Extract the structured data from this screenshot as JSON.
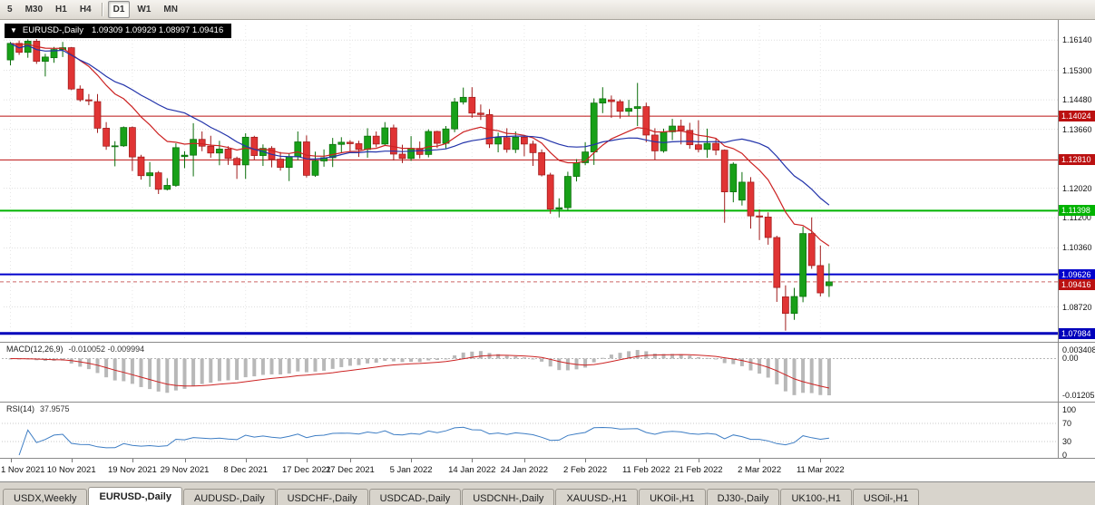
{
  "toolbar": {
    "timeframes": [
      "5",
      "M30",
      "H1",
      "H4",
      "D1",
      "W1",
      "MN"
    ],
    "active": "D1"
  },
  "chart": {
    "title": {
      "dropdown_glyph": "▼",
      "symbol": "EURUSD-,Daily",
      "ohlc": "1.09309 1.09929 1.08997 1.09416"
    },
    "scale": {
      "min": 1.078,
      "max": 1.1655
    },
    "price_axis": {
      "ticks": [
        "1.16140",
        "1.15300",
        "1.14480",
        "1.13660",
        "1.12020",
        "1.11200",
        "1.10360",
        "1.08720"
      ]
    },
    "levels": [
      {
        "label": "1.14024",
        "value": 1.14024,
        "color": "#bb1111",
        "width": 1
      },
      {
        "label": "1.12810",
        "value": 1.1281,
        "color": "#bb1111",
        "width": 1
      },
      {
        "label": "1.11398",
        "value": 1.11398,
        "color": "#00b300",
        "width": 2
      },
      {
        "label": "1.09626",
        "value": 1.09626,
        "color": "#0000cc",
        "width": 2
      },
      {
        "label": "1.07984",
        "value": 1.07984,
        "color": "#0000bb",
        "width": 3
      }
    ],
    "current_price": {
      "label": "1.09416",
      "value": 1.09416,
      "color": "#bb1111"
    },
    "colors": {
      "up": "#18a018",
      "up_border": "#0b6e0b",
      "down": "#e03434",
      "down_border": "#a01c1c",
      "ma_slow": "#2233aa",
      "ma_fast": "#cc2222"
    }
  },
  "chart_data": {
    "type": "candlestick",
    "symbol": "EURUSD-,Daily",
    "note": "values approximate, read from chart pixels; order [open,high,low,close]",
    "x_labels": [
      {
        "label": "1 Nov 2021",
        "i": 0
      },
      {
        "label": "10 Nov 2021",
        "i": 7
      },
      {
        "label": "19 Nov 2021",
        "i": 14
      },
      {
        "label": "29 Nov 2021",
        "i": 20
      },
      {
        "label": "8 Dec 2021",
        "i": 27
      },
      {
        "label": "17 Dec 2021",
        "i": 34
      },
      {
        "label": "27 Dec 2021",
        "i": 39
      },
      {
        "label": "5 Jan 2022",
        "i": 46
      },
      {
        "label": "14 Jan 2022",
        "i": 53
      },
      {
        "label": "24 Jan 2022",
        "i": 59
      },
      {
        "label": "2 Feb 2022",
        "i": 66
      },
      {
        "label": "11 Feb 2022",
        "i": 73
      },
      {
        "label": "21 Feb 2022",
        "i": 79
      },
      {
        "label": "2 Mar 2022",
        "i": 86
      },
      {
        "label": "11 Mar 2022",
        "i": 93
      }
    ],
    "candles": [
      [
        1.1559,
        1.1609,
        1.1544,
        1.1605
      ],
      [
        1.1605,
        1.1613,
        1.1573,
        1.158
      ],
      [
        1.158,
        1.1616,
        1.1565,
        1.1611
      ],
      [
        1.1611,
        1.1617,
        1.1548,
        1.1555
      ],
      [
        1.1555,
        1.1576,
        1.1513,
        1.1567
      ],
      [
        1.1565,
        1.1595,
        1.1551,
        1.1588
      ],
      [
        1.1588,
        1.1609,
        1.1567,
        1.1593
      ],
      [
        1.1593,
        1.1595,
        1.1475,
        1.1478
      ],
      [
        1.1478,
        1.1488,
        1.1443,
        1.1448
      ],
      [
        1.1448,
        1.1464,
        1.1433,
        1.1445
      ],
      [
        1.1443,
        1.1464,
        1.1356,
        1.1369
      ],
      [
        1.1369,
        1.1386,
        1.1309,
        1.1319
      ],
      [
        1.1319,
        1.1333,
        1.1263,
        1.132
      ],
      [
        1.132,
        1.1374,
        1.1317,
        1.1371
      ],
      [
        1.1371,
        1.1374,
        1.125,
        1.1289
      ],
      [
        1.1289,
        1.1295,
        1.1226,
        1.1237
      ],
      [
        1.1237,
        1.1275,
        1.1206,
        1.1245
      ],
      [
        1.1245,
        1.125,
        1.1186,
        1.1199
      ],
      [
        1.1199,
        1.123,
        1.1196,
        1.121
      ],
      [
        1.121,
        1.1327,
        1.1206,
        1.1315
      ],
      [
        1.129,
        1.1305,
        1.1258,
        1.1294
      ],
      [
        1.1294,
        1.1383,
        1.1235,
        1.1338
      ],
      [
        1.1338,
        1.136,
        1.1305,
        1.1319
      ],
      [
        1.1319,
        1.1348,
        1.1287,
        1.13
      ],
      [
        1.13,
        1.1334,
        1.1266,
        1.1311
      ],
      [
        1.1311,
        1.1319,
        1.1267,
        1.1285
      ],
      [
        1.1285,
        1.129,
        1.1228,
        1.1267
      ],
      [
        1.1267,
        1.1355,
        1.1228,
        1.1344
      ],
      [
        1.1344,
        1.1348,
        1.128,
        1.1293
      ],
      [
        1.1293,
        1.1324,
        1.1264,
        1.1313
      ],
      [
        1.1313,
        1.1319,
        1.126,
        1.1283
      ],
      [
        1.1283,
        1.1303,
        1.1251,
        1.126
      ],
      [
        1.126,
        1.1298,
        1.1222,
        1.129
      ],
      [
        1.129,
        1.136,
        1.128,
        1.1331
      ],
      [
        1.1331,
        1.1349,
        1.1232,
        1.1238
      ],
      [
        1.1238,
        1.1304,
        1.1234,
        1.1278
      ],
      [
        1.1278,
        1.131,
        1.1262,
        1.1287
      ],
      [
        1.1287,
        1.1342,
        1.1261,
        1.1324
      ],
      [
        1.1324,
        1.1344,
        1.1301,
        1.133
      ],
      [
        1.133,
        1.1336,
        1.1304,
        1.1326
      ],
      [
        1.1326,
        1.1334,
        1.1289,
        1.131
      ],
      [
        1.131,
        1.1369,
        1.1287,
        1.1347
      ],
      [
        1.1347,
        1.136,
        1.1316,
        1.1325
      ],
      [
        1.1325,
        1.1386,
        1.1321,
        1.137
      ],
      [
        1.137,
        1.1379,
        1.1279,
        1.1297
      ],
      [
        1.1297,
        1.1323,
        1.1272,
        1.1285
      ],
      [
        1.1285,
        1.1347,
        1.1278,
        1.1313
      ],
      [
        1.1313,
        1.1332,
        1.1285,
        1.1296
      ],
      [
        1.1296,
        1.1366,
        1.1288,
        1.136
      ],
      [
        1.136,
        1.1362,
        1.1314,
        1.1327
      ],
      [
        1.1327,
        1.1375,
        1.1313,
        1.1367
      ],
      [
        1.1367,
        1.1453,
        1.1358,
        1.1442
      ],
      [
        1.1442,
        1.1482,
        1.1435,
        1.1455
      ],
      [
        1.1455,
        1.1483,
        1.1398,
        1.1411
      ],
      [
        1.1411,
        1.1435,
        1.1392,
        1.1407
      ],
      [
        1.1407,
        1.1422,
        1.1314,
        1.1325
      ],
      [
        1.1325,
        1.1357,
        1.1302,
        1.1343
      ],
      [
        1.1343,
        1.1369,
        1.1301,
        1.131
      ],
      [
        1.131,
        1.136,
        1.13,
        1.1344
      ],
      [
        1.1344,
        1.1349,
        1.1291,
        1.1325
      ],
      [
        1.1325,
        1.1334,
        1.1264,
        1.1301
      ],
      [
        1.1301,
        1.131,
        1.1235,
        1.1239
      ],
      [
        1.1239,
        1.1245,
        1.1131,
        1.1144
      ],
      [
        1.1144,
        1.1174,
        1.1121,
        1.1148
      ],
      [
        1.1148,
        1.1248,
        1.1141,
        1.1235
      ],
      [
        1.1235,
        1.1283,
        1.1221,
        1.1273
      ],
      [
        1.1273,
        1.133,
        1.1266,
        1.1303
      ],
      [
        1.1303,
        1.1452,
        1.1267,
        1.1439
      ],
      [
        1.1439,
        1.1483,
        1.1411,
        1.1451
      ],
      [
        1.1448,
        1.146,
        1.1398,
        1.1443
      ],
      [
        1.1443,
        1.1449,
        1.1396,
        1.1416
      ],
      [
        1.1416,
        1.1448,
        1.1403,
        1.1424
      ],
      [
        1.1424,
        1.1495,
        1.1375,
        1.1429
      ],
      [
        1.1429,
        1.144,
        1.133,
        1.135
      ],
      [
        1.135,
        1.1369,
        1.128,
        1.1306
      ],
      [
        1.1306,
        1.1368,
        1.1301,
        1.1359
      ],
      [
        1.1359,
        1.1395,
        1.1336,
        1.1375
      ],
      [
        1.1375,
        1.1393,
        1.1324,
        1.1363
      ],
      [
        1.1363,
        1.1384,
        1.1312,
        1.1323
      ],
      [
        1.1323,
        1.1391,
        1.1302,
        1.131
      ],
      [
        1.131,
        1.1368,
        1.1287,
        1.1327
      ],
      [
        1.1327,
        1.1342,
        1.1294,
        1.1308
      ],
      [
        1.1308,
        1.131,
        1.1106,
        1.1192
      ],
      [
        1.1192,
        1.1274,
        1.1163,
        1.1269
      ],
      [
        1.1169,
        1.1247,
        1.1154,
        1.1219
      ],
      [
        1.1219,
        1.1233,
        1.109,
        1.1125
      ],
      [
        1.1125,
        1.1143,
        1.1058,
        1.1122
      ],
      [
        1.1122,
        1.1135,
        1.1045,
        1.1065
      ],
      [
        1.1065,
        1.107,
        1.0886,
        1.0926
      ],
      [
        1.09,
        1.0932,
        1.0806,
        1.0854
      ],
      [
        1.0854,
        1.0925,
        1.0836,
        1.0901
      ],
      [
        1.0901,
        1.1095,
        1.0885,
        1.1076
      ],
      [
        1.1076,
        1.1121,
        1.0978,
        1.0987
      ],
      [
        1.0987,
        1.1043,
        1.0901,
        1.0911
      ],
      [
        1.09309,
        1.09929,
        1.08997,
        1.09416
      ]
    ]
  },
  "macd": {
    "label": "MACD(12,26,9)",
    "values": "-0.010052 -0.009994",
    "axis": [
      "0.003408",
      "0.00",
      "-0.012052"
    ],
    "params": {
      "fast": 12,
      "slow": 26,
      "signal": 9
    }
  },
  "rsi": {
    "label": "RSI(14)",
    "value": "37.9575",
    "axis": [
      "100",
      "70",
      "30",
      "0"
    ],
    "period": 14
  },
  "tabs": [
    {
      "label": "USDX,Weekly",
      "active": false
    },
    {
      "label": "EURUSD-,Daily",
      "active": true
    },
    {
      "label": "AUDUSD-,Daily",
      "active": false
    },
    {
      "label": "USDCHF-,Daily",
      "active": false
    },
    {
      "label": "USDCAD-,Daily",
      "active": false
    },
    {
      "label": "USDCNH-,Daily",
      "active": false
    },
    {
      "label": "XAUUSD-,H1",
      "active": false
    },
    {
      "label": "UKOil-,H1",
      "active": false
    },
    {
      "label": "DJ30-,Daily",
      "active": false
    },
    {
      "label": "UK100-,H1",
      "active": false
    },
    {
      "label": "USOil-,H1",
      "active": false
    }
  ]
}
